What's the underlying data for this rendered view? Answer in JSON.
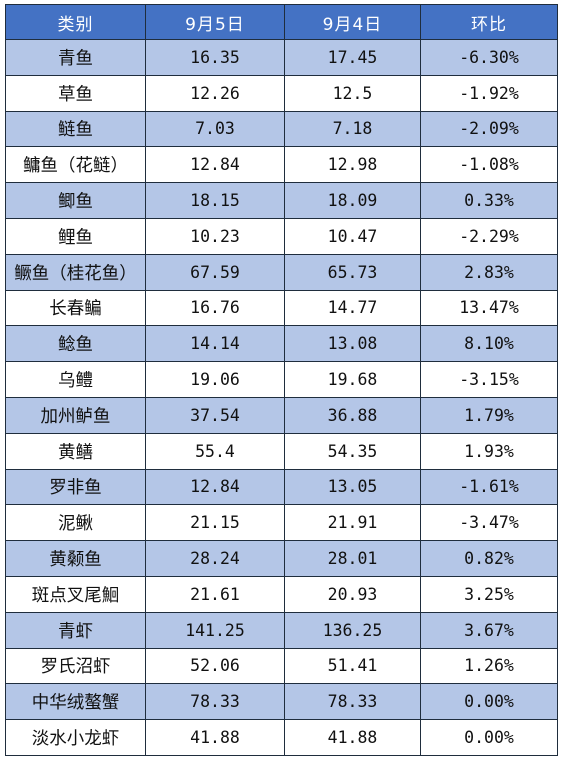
{
  "table": {
    "headers": [
      "类别",
      "9月5日",
      "9月4日",
      "环比"
    ],
    "rows": [
      [
        "青鱼",
        "16.35",
        "17.45",
        "-6.30%"
      ],
      [
        "草鱼",
        "12.26",
        "12.5",
        "-1.92%"
      ],
      [
        "鲢鱼",
        "7.03",
        "7.18",
        "-2.09%"
      ],
      [
        "鳙鱼（花鲢）",
        "12.84",
        "12.98",
        "-1.08%"
      ],
      [
        "鲫鱼",
        "18.15",
        "18.09",
        "0.33%"
      ],
      [
        "鲤鱼",
        "10.23",
        "10.47",
        "-2.29%"
      ],
      [
        "鳜鱼（桂花鱼）",
        "67.59",
        "65.73",
        "2.83%"
      ],
      [
        "长春鳊",
        "16.76",
        "14.77",
        "13.47%"
      ],
      [
        "鲶鱼",
        "14.14",
        "13.08",
        "8.10%"
      ],
      [
        "乌鳢",
        "19.06",
        "19.68",
        "-3.15%"
      ],
      [
        "加州鲈鱼",
        "37.54",
        "36.88",
        "1.79%"
      ],
      [
        "黄鳝",
        "55.4",
        "54.35",
        "1.93%"
      ],
      [
        "罗非鱼",
        "12.84",
        "13.05",
        "-1.61%"
      ],
      [
        "泥鳅",
        "21.15",
        "21.91",
        "-3.47%"
      ],
      [
        "黄颡鱼",
        "28.24",
        "28.01",
        "0.82%"
      ],
      [
        "斑点叉尾鮰",
        "21.61",
        "20.93",
        "3.25%"
      ],
      [
        "青虾",
        "141.25",
        "136.25",
        "3.67%"
      ],
      [
        "罗氏沼虾",
        "52.06",
        "51.41",
        "1.26%"
      ],
      [
        "中华绒螯蟹",
        "78.33",
        "78.33",
        "0.00%"
      ],
      [
        "淡水小龙虾",
        "41.88",
        "41.88",
        "0.00%"
      ]
    ]
  },
  "colors": {
    "header_bg": "#4472c4",
    "header_text": "#ffffff",
    "band_bg": "#b4c6e7",
    "plain_bg": "#ffffff",
    "border": "#1f2d3d"
  }
}
